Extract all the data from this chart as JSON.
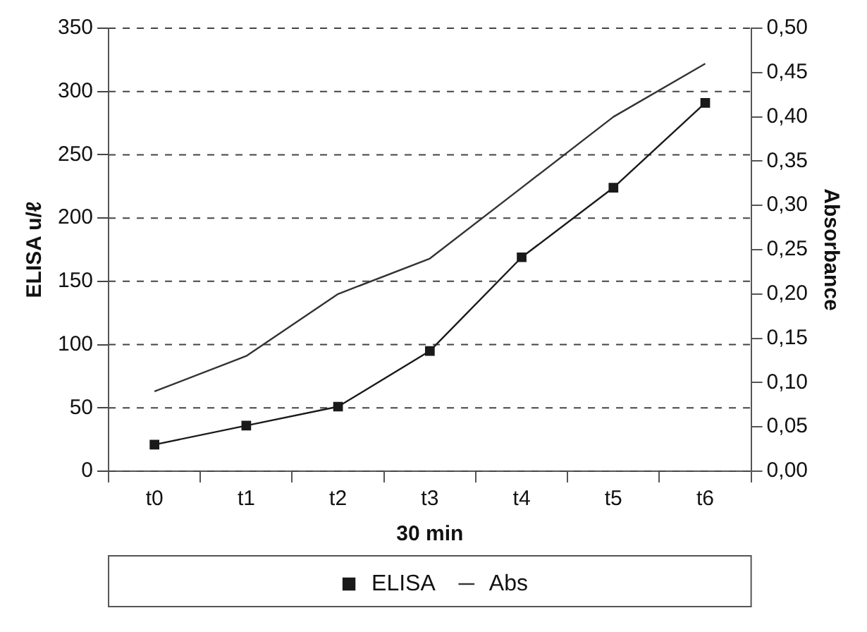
{
  "chart_data": {
    "type": "line",
    "xlabel": "30 min",
    "ylabel": "ELISA u/ℓ",
    "y2label": "Absorbance",
    "categories": [
      "t0",
      "t1",
      "t2",
      "t3",
      "t4",
      "t5",
      "t6"
    ],
    "series": [
      {
        "name": "ELISA",
        "color": "#1a1a1a",
        "marker": "square",
        "values": [
          21,
          36,
          51,
          95,
          169,
          224,
          291
        ]
      },
      {
        "name": "Abs",
        "color": "#333333",
        "marker": "none",
        "axis": "y2",
        "values": [
          0.09,
          0.13,
          0.2,
          0.24,
          0.32,
          0.4,
          0.46
        ]
      }
    ],
    "ylim": [
      0,
      350
    ],
    "yticks": [
      0,
      50,
      100,
      150,
      200,
      250,
      300,
      350
    ],
    "y2lim": [
      0,
      0.5
    ],
    "y2ticks": [
      {
        "value": 0,
        "label": "0,00"
      },
      {
        "value": 0.05,
        "label": "0,05"
      },
      {
        "value": 0.1,
        "label": "0,10"
      },
      {
        "value": 0.15,
        "label": "0,15"
      },
      {
        "value": 0.2,
        "label": "0,20"
      },
      {
        "value": 0.25,
        "label": "0,25"
      },
      {
        "value": 0.3,
        "label": "0,30"
      },
      {
        "value": 0.35,
        "label": "0,35"
      },
      {
        "value": 0.4,
        "label": "0,40"
      },
      {
        "value": 0.45,
        "label": "0,45"
      },
      {
        "value": 0.5,
        "label": "0,50"
      }
    ],
    "grid": "y",
    "legend": "bottom",
    "line_style": "solid"
  }
}
